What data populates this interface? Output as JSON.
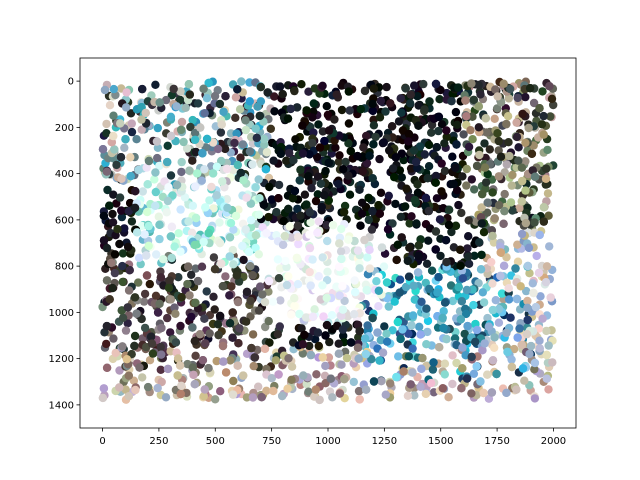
{
  "chart_data": {
    "type": "scatter",
    "title": "",
    "xlabel": "",
    "ylabel": "",
    "xlim": [
      -100,
      2100
    ],
    "ylim": [
      1500,
      -100
    ],
    "y_inverted": true,
    "grid": false,
    "xticks": [
      0,
      250,
      500,
      750,
      1000,
      1250,
      1500,
      1750,
      2000
    ],
    "yticks": [
      0,
      200,
      400,
      600,
      800,
      1000,
      1200,
      1400
    ],
    "xtick_labels": [
      "0",
      "250",
      "500",
      "750",
      "1000",
      "1250",
      "1500",
      "1750",
      "2000"
    ],
    "ytick_labels": [
      "0",
      "200",
      "400",
      "600",
      "800",
      "1000",
      "1200",
      "1400"
    ],
    "data_extent": {
      "x": [
        0,
        2000
      ],
      "y": [
        0,
        1380
      ]
    },
    "point_count_approx": 3000,
    "color_regions": [
      {
        "name": "dark-upper-center",
        "x": [
          750,
          1600
        ],
        "y": [
          0,
          650
        ],
        "colors": [
          "#0a0d10",
          "#111417",
          "#1b2227",
          "#050708",
          "#22282d"
        ]
      },
      {
        "name": "mixed-upper-left",
        "x": [
          0,
          750
        ],
        "y": [
          0,
          450
        ],
        "colors": [
          "#2b2f33",
          "#6c7b86",
          "#c8b7a8",
          "#8fb9c4",
          "#1f2a30",
          "#d9d2c6",
          "#3ba6c4"
        ]
      },
      {
        "name": "light-cyan-left",
        "x": [
          150,
          700
        ],
        "y": [
          350,
          800
        ],
        "colors": [
          "#c9f1ef",
          "#a9e4e4",
          "#e0f7f3",
          "#9fd8d2",
          "#68c9c0",
          "#dfeee0"
        ]
      },
      {
        "name": "mixed-upper-right",
        "x": [
          1600,
          2000
        ],
        "y": [
          0,
          650
        ],
        "colors": [
          "#6d7865",
          "#9a8f76",
          "#2e3329",
          "#bfb49a",
          "#4f5849",
          "#1d2024"
        ]
      },
      {
        "name": "dark-lower-left",
        "x": [
          0,
          800
        ],
        "y": [
          750,
          1250
        ],
        "colors": [
          "#2f2b2a",
          "#4a4342",
          "#1e1b1c",
          "#6d6260",
          "#8a7f80",
          "#3b3636"
        ]
      },
      {
        "name": "pale-center",
        "x": [
          700,
          1250
        ],
        "y": [
          600,
          1050
        ],
        "colors": [
          "#f1f4f6",
          "#e6edf0",
          "#dfe7ea",
          "#c9d5d9",
          "#fbfbfb"
        ]
      },
      {
        "name": "blue-lower-right",
        "x": [
          1150,
          1900
        ],
        "y": [
          800,
          1300
        ],
        "colors": [
          "#2a7fa8",
          "#1f5f86",
          "#4aa8c8",
          "#7dcde0",
          "#2fc8d8",
          "#163d57",
          "#88b6d9"
        ]
      },
      {
        "name": "tan-lower-band",
        "x": [
          0,
          2000
        ],
        "y": [
          1150,
          1380
        ],
        "colors": [
          "#c9b39a",
          "#a88f7a",
          "#dcc4a8",
          "#b7a6c6",
          "#7e6d6a",
          "#e2d0c0",
          "#9fb0c8"
        ]
      },
      {
        "name": "pale-right-edge",
        "x": [
          1700,
          2000
        ],
        "y": [
          650,
          1300
        ],
        "colors": [
          "#d9cdb6",
          "#a7bcd8",
          "#e9e2d6",
          "#8fa9cf",
          "#c2b28f"
        ]
      }
    ]
  }
}
